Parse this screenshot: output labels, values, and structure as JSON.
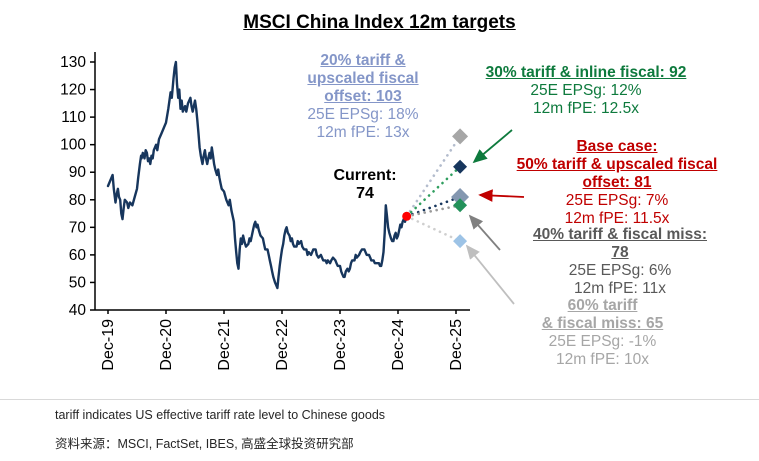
{
  "title": "MSCI China Index 12m targets",
  "footnote": "tariff indicates US effective tariff rate level to Chinese goods",
  "source": "资料来源：MSCI, FactSet, IBES, 高盛全球投资研究部",
  "annotations": {
    "s20": {
      "l1": "20% tariff &",
      "l2": "upscaled fiscal",
      "l3": "offset: 103",
      "d1": "25E EPSg: 18%",
      "d2": "12m fPE: 13x"
    },
    "s30": {
      "l1": "30% tariff & inline fiscal: 92",
      "d1": "25E EPSg: 12%",
      "d2": "12m fPE: 12.5x"
    },
    "base": {
      "l1": "Base case:",
      "l2": "50% tariff & upscaled fiscal",
      "l3": "offset: 81",
      "d1": "25E EPSg: 7%",
      "d2": "12m fPE: 11.5x"
    },
    "s40": {
      "l1": "40% tariff & fiscal miss:",
      "l2": "78",
      "d1": "25E EPSg: 6%",
      "d2": "12m fPE: 11x"
    },
    "s60": {
      "l1": "60% tariff",
      "l2": "& fiscal miss: 65",
      "d1": "25E EPSg: -1%",
      "d2": "12m fPE: 10x"
    },
    "current": {
      "l1": "Current:",
      "l2": "74"
    }
  },
  "chart_data": {
    "type": "line",
    "title": "MSCI China Index 12m targets",
    "ylim": [
      40,
      130
    ],
    "ytick_step": 10,
    "x_labels": [
      "Dec-19",
      "Dec-20",
      "Dec-21",
      "Dec-22",
      "Dec-23",
      "Dec-24",
      "Dec-25"
    ],
    "current": {
      "label": "Current",
      "value": 74,
      "t": 5.15,
      "marker_color": "#ff0000"
    },
    "history": {
      "name": "MSCI China Index (historical)",
      "color": "#17365d",
      "points": [
        [
          0,
          85
        ],
        [
          0.04,
          87
        ],
        [
          0.08,
          89
        ],
        [
          0.1,
          84
        ],
        [
          0.13,
          79
        ],
        [
          0.15,
          82
        ],
        [
          0.17,
          84
        ],
        [
          0.19,
          81
        ],
        [
          0.21,
          80
        ],
        [
          0.23,
          75
        ],
        [
          0.25,
          73
        ],
        [
          0.27,
          77
        ],
        [
          0.29,
          80
        ],
        [
          0.33,
          79
        ],
        [
          0.35,
          77
        ],
        [
          0.38,
          79
        ],
        [
          0.42,
          78
        ],
        [
          0.46,
          81
        ],
        [
          0.5,
          84
        ],
        [
          0.52,
          88
        ],
        [
          0.55,
          93
        ],
        [
          0.57,
          96
        ],
        [
          0.58,
          95
        ],
        [
          0.6,
          97
        ],
        [
          0.63,
          95
        ],
        [
          0.65,
          98
        ],
        [
          0.67,
          97
        ],
        [
          0.69,
          94
        ],
        [
          0.71,
          95
        ],
        [
          0.73,
          93
        ],
        [
          0.75,
          96
        ],
        [
          0.77,
          95
        ],
        [
          0.79,
          98
        ],
        [
          0.83,
          100
        ],
        [
          0.85,
          98
        ],
        [
          0.88,
          102
        ],
        [
          0.92,
          104
        ],
        [
          0.96,
          106
        ],
        [
          1,
          108
        ],
        [
          1.04,
          113
        ],
        [
          1.08,
          119
        ],
        [
          1.1,
          117
        ],
        [
          1.13,
          124
        ],
        [
          1.15,
          128
        ],
        [
          1.17,
          130
        ],
        [
          1.19,
          122
        ],
        [
          1.21,
          117
        ],
        [
          1.23,
          120
        ],
        [
          1.25,
          113
        ],
        [
          1.27,
          116
        ],
        [
          1.29,
          112
        ],
        [
          1.33,
          114
        ],
        [
          1.35,
          112
        ],
        [
          1.38,
          115
        ],
        [
          1.42,
          117
        ],
        [
          1.44,
          114
        ],
        [
          1.46,
          112
        ],
        [
          1.5,
          116
        ],
        [
          1.52,
          113
        ],
        [
          1.54,
          109
        ],
        [
          1.56,
          104
        ],
        [
          1.58,
          99
        ],
        [
          1.6,
          96
        ],
        [
          1.63,
          93
        ],
        [
          1.65,
          96
        ],
        [
          1.67,
          98
        ],
        [
          1.69,
          95
        ],
        [
          1.71,
          93
        ],
        [
          1.73,
          95
        ],
        [
          1.75,
          97
        ],
        [
          1.77,
          95
        ],
        [
          1.79,
          99
        ],
        [
          1.81,
          96
        ],
        [
          1.83,
          93
        ],
        [
          1.85,
          91
        ],
        [
          1.88,
          89
        ],
        [
          1.9,
          91
        ],
        [
          1.92,
          88
        ],
        [
          1.94,
          86
        ],
        [
          1.96,
          84
        ],
        [
          2,
          83
        ],
        [
          2.04,
          80
        ],
        [
          2.08,
          78
        ],
        [
          2.1,
          80
        ],
        [
          2.13,
          76
        ],
        [
          2.17,
          72
        ],
        [
          2.19,
          66
        ],
        [
          2.21,
          61
        ],
        [
          2.23,
          57
        ],
        [
          2.25,
          55
        ],
        [
          2.27,
          62
        ],
        [
          2.29,
          66
        ],
        [
          2.31,
          64
        ],
        [
          2.33,
          67
        ],
        [
          2.35,
          65
        ],
        [
          2.38,
          63
        ],
        [
          2.42,
          64
        ],
        [
          2.44,
          66
        ],
        [
          2.46,
          65
        ],
        [
          2.5,
          69
        ],
        [
          2.52,
          71
        ],
        [
          2.54,
          72
        ],
        [
          2.56,
          70
        ],
        [
          2.58,
          71
        ],
        [
          2.6,
          69
        ],
        [
          2.63,
          67
        ],
        [
          2.67,
          66
        ],
        [
          2.69,
          64
        ],
        [
          2.71,
          62
        ],
        [
          2.75,
          62
        ],
        [
          2.77,
          60
        ],
        [
          2.79,
          58
        ],
        [
          2.81,
          56
        ],
        [
          2.83,
          54
        ],
        [
          2.85,
          52
        ],
        [
          2.88,
          50
        ],
        [
          2.9,
          49
        ],
        [
          2.92,
          48
        ],
        [
          2.94,
          52
        ],
        [
          2.96,
          56
        ],
        [
          2.98,
          59
        ],
        [
          3,
          62
        ],
        [
          3.02,
          64
        ],
        [
          3.04,
          67
        ],
        [
          3.06,
          69
        ],
        [
          3.08,
          70
        ],
        [
          3.1,
          68
        ],
        [
          3.13,
          67
        ],
        [
          3.15,
          65
        ],
        [
          3.17,
          66
        ],
        [
          3.19,
          64
        ],
        [
          3.21,
          63
        ],
        [
          3.25,
          63
        ],
        [
          3.27,
          65
        ],
        [
          3.29,
          64
        ],
        [
          3.33,
          65
        ],
        [
          3.35,
          63
        ],
        [
          3.38,
          62
        ],
        [
          3.42,
          62
        ],
        [
          3.44,
          60
        ],
        [
          3.46,
          61
        ],
        [
          3.5,
          60
        ],
        [
          3.52,
          61
        ],
        [
          3.54,
          62
        ],
        [
          3.58,
          62
        ],
        [
          3.6,
          60
        ],
        [
          3.63,
          59
        ],
        [
          3.67,
          60
        ],
        [
          3.69,
          59
        ],
        [
          3.71,
          58
        ],
        [
          3.75,
          58
        ],
        [
          3.77,
          57
        ],
        [
          3.79,
          58
        ],
        [
          3.83,
          57
        ],
        [
          3.85,
          58
        ],
        [
          3.88,
          59
        ],
        [
          3.92,
          58
        ],
        [
          3.94,
          57
        ],
        [
          3.96,
          56
        ],
        [
          4,
          56
        ],
        [
          4.02,
          54
        ],
        [
          4.04,
          53
        ],
        [
          4.06,
          52
        ],
        [
          4.08,
          52
        ],
        [
          4.1,
          54
        ],
        [
          4.13,
          55
        ],
        [
          4.15,
          54
        ],
        [
          4.17,
          55
        ],
        [
          4.19,
          57
        ],
        [
          4.21,
          58
        ],
        [
          4.25,
          58
        ],
        [
          4.27,
          60
        ],
        [
          4.29,
          59
        ],
        [
          4.33,
          60
        ],
        [
          4.35,
          61
        ],
        [
          4.38,
          62
        ],
        [
          4.42,
          62
        ],
        [
          4.44,
          61
        ],
        [
          4.46,
          60
        ],
        [
          4.5,
          60
        ],
        [
          4.52,
          59
        ],
        [
          4.54,
          58
        ],
        [
          4.58,
          58
        ],
        [
          4.6,
          57
        ],
        [
          4.63,
          57
        ],
        [
          4.67,
          57
        ],
        [
          4.69,
          56
        ],
        [
          4.71,
          56
        ],
        [
          4.73,
          58
        ],
        [
          4.75,
          61
        ],
        [
          4.77,
          68
        ],
        [
          4.79,
          78
        ],
        [
          4.81,
          74
        ],
        [
          4.83,
          70
        ],
        [
          4.85,
          68
        ],
        [
          4.88,
          66
        ],
        [
          4.9,
          65
        ],
        [
          4.92,
          65
        ],
        [
          4.94,
          67
        ],
        [
          4.96,
          68
        ],
        [
          4.98,
          66
        ],
        [
          5,
          67
        ],
        [
          5.02,
          69
        ],
        [
          5.04,
          71
        ],
        [
          5.06,
          70
        ],
        [
          5.08,
          72
        ],
        [
          5.1,
          73
        ],
        [
          5.12,
          72
        ],
        [
          5.15,
          74
        ]
      ]
    },
    "scenario_t": 6.07,
    "scenarios": [
      {
        "label": "20% tariff & upscaled fiscal offset",
        "target": 103,
        "eps_growth_25e": "18%",
        "fpe_12m": "13x",
        "text_color": "#8496c8",
        "dot_color": "#b3bccd",
        "marker_color": "#a6a6a6",
        "marker_size": 8
      },
      {
        "label": "30% tariff & inline fiscal",
        "target": 92,
        "eps_growth_25e": "12%",
        "fpe_12m": "12.5x",
        "text_color": "#0e7a3d",
        "dot_color": "#2f9e5f",
        "marker_color": "#17365d",
        "marker_size": 7
      },
      {
        "label": "Base case: 50% tariff & upscaled fiscal offset",
        "target": 81,
        "eps_growth_25e": "7%",
        "fpe_12m": "11.5x",
        "text_color": "#c00000",
        "dot_color": "#17365d",
        "marker_color": "#8497b0",
        "marker_size": 9
      },
      {
        "label": "40% tariff & fiscal miss",
        "target": 78,
        "eps_growth_25e": "6%",
        "fpe_12m": "11x",
        "text_color": "#808080",
        "dot_color": "#9a9a9a",
        "marker_color": "#23915a",
        "marker_size": 7
      },
      {
        "label": "60% tariff & fiscal miss",
        "target": 65,
        "eps_growth_25e": "-1%",
        "fpe_12m": "10x",
        "text_color": "#bfbfbf",
        "dot_color": "#cfcfcf",
        "marker_color": "#9dc3e6",
        "marker_size": 7
      }
    ]
  }
}
